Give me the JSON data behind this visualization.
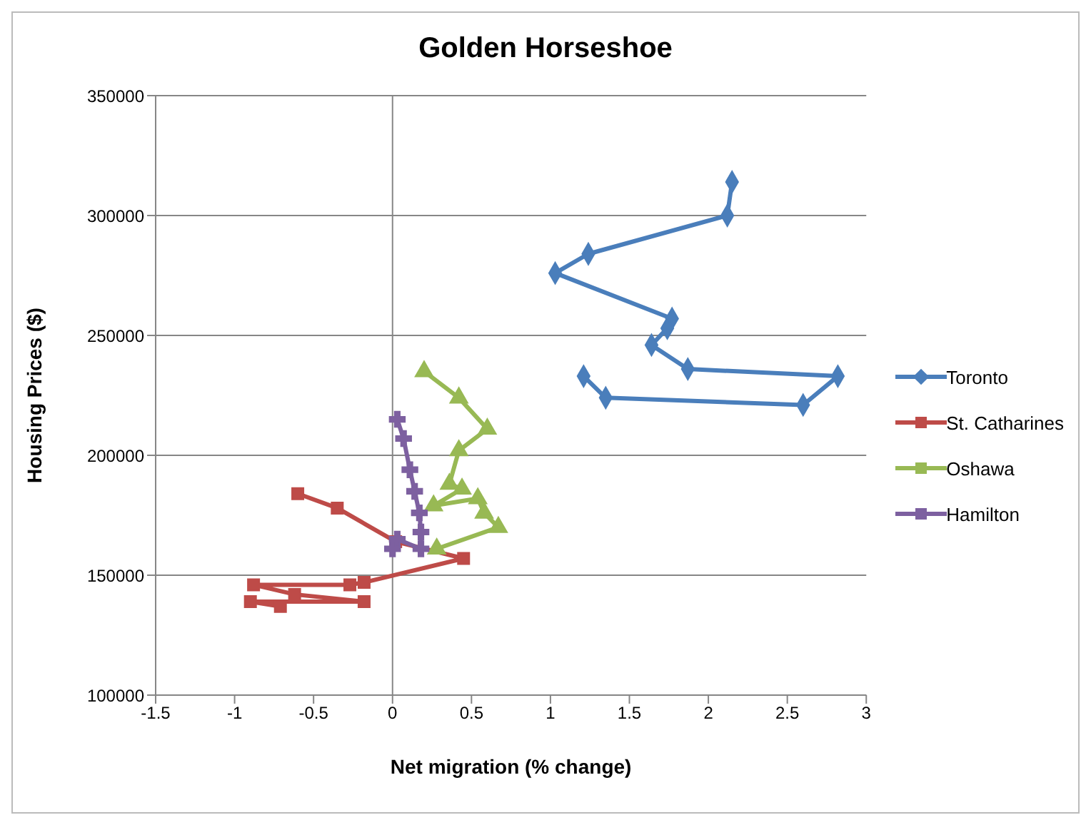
{
  "chart_data": {
    "type": "line",
    "title": "Golden Horseshoe",
    "xlabel": "Net migration (% change)",
    "ylabel": "Housing Prices ($)",
    "xlim": [
      -1.5,
      3
    ],
    "xticks": [
      -1.5,
      -1,
      -0.5,
      0,
      0.5,
      1,
      1.5,
      2,
      2.5,
      3
    ],
    "ylim": [
      100000,
      350000
    ],
    "yticks": [
      100000,
      150000,
      200000,
      250000,
      300000,
      350000
    ],
    "grid": "y",
    "legend": "right",
    "line_style": "solid",
    "ref_lines": [
      {
        "axis": "x",
        "value": 0,
        "color": "#868686"
      }
    ],
    "series": [
      {
        "name": "Toronto",
        "color": "#4a7ebb",
        "marker": "diamond",
        "x": [
          2.15,
          2.12,
          1.24,
          1.03,
          1.77,
          1.74,
          1.64,
          1.87,
          2.82,
          2.6,
          1.35,
          1.21
        ],
        "values": [
          314000,
          300000,
          284000,
          276000,
          257000,
          253000,
          246000,
          236000,
          233000,
          221000,
          224000,
          233000
        ]
      },
      {
        "name": "St. Catharines",
        "color": "#be4b48",
        "marker": "square",
        "x": [
          -0.6,
          -0.35,
          0.02,
          0.45,
          -0.18,
          -0.27,
          -0.88,
          -0.62,
          -0.18,
          -0.9,
          -0.71
        ],
        "values": [
          184000,
          178000,
          164000,
          157000,
          147000,
          146000,
          146000,
          142000,
          139000,
          139000,
          137000
        ]
      },
      {
        "name": "Oshawa",
        "color": "#98b954",
        "marker": "triangle",
        "x": [
          0.2,
          0.42,
          0.6,
          0.42,
          0.36,
          0.44,
          0.26,
          0.54,
          0.58,
          0.67,
          0.28
        ],
        "values": [
          235000,
          224000,
          211000,
          202000,
          188000,
          186000,
          179000,
          182000,
          176000,
          170000,
          161000
        ]
      },
      {
        "name": "Hamilton",
        "color": "#7d60a0",
        "marker": "cross",
        "x": [
          0.03,
          0.07,
          0.11,
          0.14,
          0.17,
          0.18,
          0.18,
          0.03,
          0
        ],
        "values": [
          215000,
          207000,
          194000,
          185000,
          176000,
          168000,
          161000,
          165000,
          161000
        ]
      }
    ]
  }
}
